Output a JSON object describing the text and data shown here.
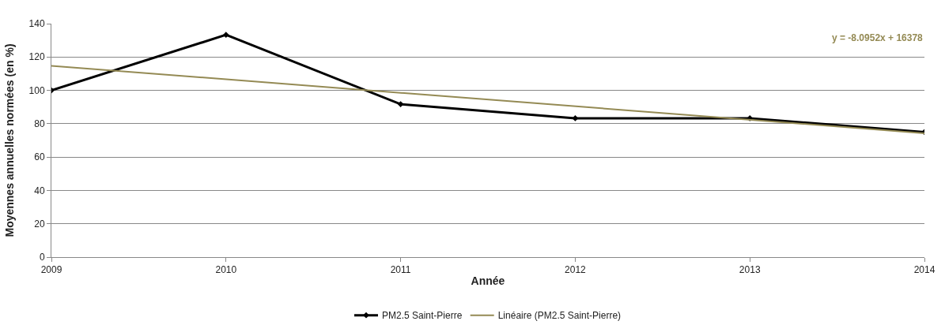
{
  "chart_data": {
    "type": "line",
    "xlabel": "Année",
    "ylabel": "Moyennes annuelles normées (en %)",
    "x": [
      2009,
      2010,
      2011,
      2012,
      2013,
      2014
    ],
    "series": [
      {
        "name": "PM2.5 Saint-Pierre",
        "color": "#000000",
        "values": [
          100,
          133.3,
          91.7,
          83.3,
          83.3,
          75
        ],
        "marker": "diamond"
      },
      {
        "name": "Linéaire (PM2.5 Saint-Pierre)",
        "color": "#948a54",
        "type": "line",
        "x": [
          2009,
          2014
        ],
        "values": [
          114.7,
          74.3
        ],
        "marker": "none"
      }
    ],
    "xlim": [
      2009,
      2014
    ],
    "xticks": [
      2009,
      2010,
      2011,
      2012,
      2013,
      2014
    ],
    "ylim": [
      0,
      140
    ],
    "yticks": [
      0,
      20,
      40,
      60,
      80,
      100,
      120,
      140
    ],
    "grid": "y",
    "legend": "bottom",
    "annotations": [
      "y = -8.0952x + 16378"
    ]
  }
}
